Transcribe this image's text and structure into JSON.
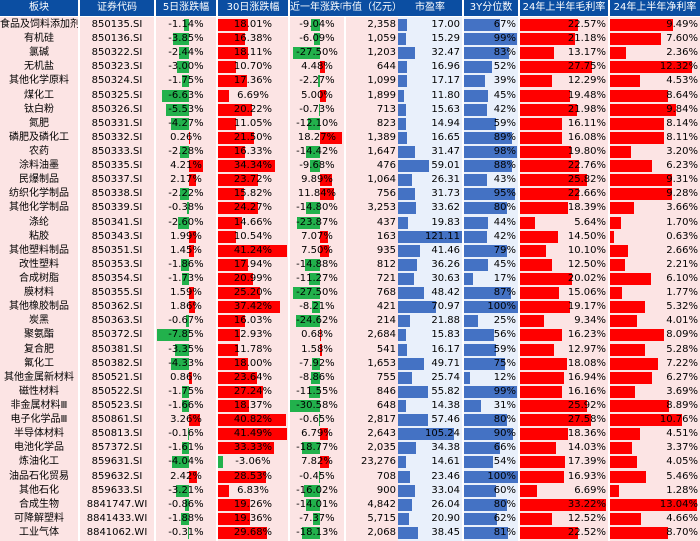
{
  "headers": [
    "板块",
    "证券代码",
    "5日涨跌幅",
    "30日涨跌幅",
    "近一年涨跌幅",
    "市值（亿元）",
    "市盈率",
    "3Y分位数",
    "24年上半年毛利率",
    "24年上半年净利率"
  ],
  "colors": {
    "header": "#0b4ea2",
    "pink": "#fce4e4",
    "blue_bg": "#e9f0fb",
    "red": "#ff0000",
    "green": "#22b14c",
    "blue_bar": "#4472c4"
  },
  "rows": [
    {
      "name": "食品及饲料添加剂",
      "code": "850135.SI",
      "d5": "-1.14%",
      "d30": "18.01%",
      "y1": "-9.04%",
      "mcap": "2,358",
      "pe": "17.00",
      "pct": "67%",
      "gm": "22.57%",
      "nm": "9.49%"
    },
    {
      "name": "有机硅",
      "code": "850136.SI",
      "d5": "-3.85%",
      "d30": "16.38%",
      "y1": "-6.09%",
      "mcap": "1,059",
      "pe": "15.29",
      "pct": "99%",
      "gm": "21.18%",
      "nm": "7.60%"
    },
    {
      "name": "氯碱",
      "code": "850322.SI",
      "d5": "-2.44%",
      "d30": "18.11%",
      "y1": "-27.50%",
      "mcap": "1,203",
      "pe": "32.47",
      "pct": "83%",
      "gm": "13.17%",
      "nm": "2.36%"
    },
    {
      "name": "无机盐",
      "code": "850323.SI",
      "d5": "-3.00%",
      "d30": "10.70%",
      "y1": "4.48%",
      "mcap": "644",
      "pe": "16.96",
      "pct": "52%",
      "gm": "27.75%",
      "nm": "12.32%"
    },
    {
      "name": "其他化学原料",
      "code": "850324.SI",
      "d5": "-1.75%",
      "d30": "17.36%",
      "y1": "-2.27%",
      "mcap": "1,099",
      "pe": "17.17",
      "pct": "39%",
      "gm": "12.29%",
      "nm": "4.53%"
    },
    {
      "name": "煤化工",
      "code": "850325.SI",
      "d5": "-6.63%",
      "d30": "6.69%",
      "y1": "5.00%",
      "mcap": "1,899",
      "pe": "11.80",
      "pct": "45%",
      "gm": "19.48%",
      "nm": "8.64%"
    },
    {
      "name": "钛白粉",
      "code": "850326.SI",
      "d5": "-5.53%",
      "d30": "20.22%",
      "y1": "-0.73%",
      "mcap": "713",
      "pe": "15.63",
      "pct": "42%",
      "gm": "21.98%",
      "nm": "9.84%"
    },
    {
      "name": "氮肥",
      "code": "850331.SI",
      "d5": "-4.27%",
      "d30": "11.05%",
      "y1": "-12.10%",
      "mcap": "823",
      "pe": "14.94",
      "pct": "59%",
      "gm": "16.11%",
      "nm": "8.14%"
    },
    {
      "name": "磷肥及磷化工",
      "code": "850332.SI",
      "d5": "0.26%",
      "d30": "21.50%",
      "y1": "18.27%",
      "mcap": "1,389",
      "pe": "16.65",
      "pct": "89%",
      "gm": "16.08%",
      "nm": "8.11%"
    },
    {
      "name": "农药",
      "code": "850333.SI",
      "d5": "-2.28%",
      "d30": "16.33%",
      "y1": "-14.42%",
      "mcap": "1,647",
      "pe": "31.47",
      "pct": "98%",
      "gm": "19.80%",
      "nm": "3.20%"
    },
    {
      "name": "涂料油墨",
      "code": "850335.SI",
      "d5": "4.21%",
      "d30": "34.34%",
      "y1": "-9.68%",
      "mcap": "476",
      "pe": "59.01",
      "pct": "88%",
      "gm": "22.76%",
      "nm": "6.23%"
    },
    {
      "name": "民爆制品",
      "code": "850337.SI",
      "d5": "2.17%",
      "d30": "23.72%",
      "y1": "9.89%",
      "mcap": "1,064",
      "pe": "26.31",
      "pct": "43%",
      "gm": "25.82%",
      "nm": "9.31%"
    },
    {
      "name": "纺织化学制品",
      "code": "850338.SI",
      "d5": "-2.22%",
      "d30": "15.82%",
      "y1": "11.84%",
      "mcap": "756",
      "pe": "31.73",
      "pct": "95%",
      "gm": "22.66%",
      "nm": "9.28%"
    },
    {
      "name": "其他化学制品",
      "code": "850339.SI",
      "d5": "-0.38%",
      "d30": "24.27%",
      "y1": "-14.80%",
      "mcap": "3,253",
      "pe": "33.62",
      "pct": "80%",
      "gm": "18.39%",
      "nm": "3.66%"
    },
    {
      "name": "涤纶",
      "code": "850341.SI",
      "d5": "-2.60%",
      "d30": "14.66%",
      "y1": "-23.87%",
      "mcap": "437",
      "pe": "19.83",
      "pct": "44%",
      "gm": "5.64%",
      "nm": "1.70%"
    },
    {
      "name": "粘胶",
      "code": "850343.SI",
      "d5": "1.99%",
      "d30": "10.54%",
      "y1": "7.07%",
      "mcap": "163",
      "pe": "121.11",
      "pct": "42%",
      "gm": "14.50%",
      "nm": "0.63%"
    },
    {
      "name": "其他塑料制品",
      "code": "850351.SI",
      "d5": "1.45%",
      "d30": "41.24%",
      "y1": "7.50%",
      "mcap": "935",
      "pe": "41.46",
      "pct": "79%",
      "gm": "10.10%",
      "nm": "2.66%"
    },
    {
      "name": "改性塑料",
      "code": "850353.SI",
      "d5": "-1.86%",
      "d30": "17.94%",
      "y1": "-14.88%",
      "mcap": "812",
      "pe": "36.26",
      "pct": "45%",
      "gm": "12.50%",
      "nm": "2.21%"
    },
    {
      "name": "合成树脂",
      "code": "850354.SI",
      "d5": "-1.73%",
      "d30": "20.99%",
      "y1": "-11.27%",
      "mcap": "721",
      "pe": "30.63",
      "pct": "17%",
      "gm": "20.02%",
      "nm": "6.10%"
    },
    {
      "name": "膜材料",
      "code": "850355.SI",
      "d5": "1.59%",
      "d30": "25.20%",
      "y1": "-27.50%",
      "mcap": "768",
      "pe": "48.42",
      "pct": "87%",
      "gm": "15.06%",
      "nm": "1.77%"
    },
    {
      "name": "其他橡胶制品",
      "code": "850362.SI",
      "d5": "1.86%",
      "d30": "37.42%",
      "y1": "-8.21%",
      "mcap": "421",
      "pe": "70.97",
      "pct": "100%",
      "gm": "19.17%",
      "nm": "5.32%"
    },
    {
      "name": "炭黑",
      "code": "850363.SI",
      "d5": "-0.67%",
      "d30": "16.03%",
      "y1": "-24.62%",
      "mcap": "214",
      "pe": "21.88",
      "pct": "25%",
      "gm": "9.34%",
      "nm": "4.01%"
    },
    {
      "name": "聚氨酯",
      "code": "850372.SI",
      "d5": "-7.85%",
      "d30": "12.93%",
      "y1": "0.68%",
      "mcap": "2,684",
      "pe": "15.83",
      "pct": "56%",
      "gm": "16.23%",
      "nm": "8.09%"
    },
    {
      "name": "复合肥",
      "code": "850381.SI",
      "d5": "-3.35%",
      "d30": "11.78%",
      "y1": "1.58%",
      "mcap": "541",
      "pe": "16.17",
      "pct": "59%",
      "gm": "12.97%",
      "nm": "5.28%"
    },
    {
      "name": "氟化工",
      "code": "850382.SI",
      "d5": "-4.33%",
      "d30": "18.00%",
      "y1": "-7.92%",
      "mcap": "1,653",
      "pe": "49.71",
      "pct": "75%",
      "gm": "18.08%",
      "nm": "7.22%"
    },
    {
      "name": "其他金属新材料",
      "code": "850521.SI",
      "d5": "0.86%",
      "d30": "23.64%",
      "y1": "-8.86%",
      "mcap": "755",
      "pe": "25.74",
      "pct": "12%",
      "gm": "16.94%",
      "nm": "6.27%"
    },
    {
      "name": "磁性材料",
      "code": "850522.SI",
      "d5": "-1.75%",
      "d30": "27.24%",
      "y1": "-11.55%",
      "mcap": "846",
      "pe": "55.82",
      "pct": "99%",
      "gm": "16.16%",
      "nm": "3.69%"
    },
    {
      "name": "非金属材料Ⅲ",
      "code": "850523.SI",
      "d5": "-1.66%",
      "d30": "18.37%",
      "y1": "-30.58%",
      "mcap": "648",
      "pe": "14.38",
      "pct": "31%",
      "gm": "25.92%",
      "nm": "8.89%"
    },
    {
      "name": "电子化学品Ⅲ",
      "code": "850861.SI",
      "d5": "3.26%",
      "d30": "40.82%",
      "y1": "-0.65%",
      "mcap": "2,817",
      "pe": "57.46",
      "pct": "80%",
      "gm": "27.58%",
      "nm": "10.76%"
    },
    {
      "name": "半导体材料",
      "code": "850813.SI",
      "d5": "-0.16%",
      "d30": "41.49%",
      "y1": "6.79%",
      "mcap": "2,643",
      "pe": "105.24",
      "pct": "90%",
      "gm": "18.36%",
      "nm": "4.51%"
    },
    {
      "name": "电池化学品",
      "code": "857372.SI",
      "d5": "-1.61%",
      "d30": "33.33%",
      "y1": "-18.77%",
      "mcap": "2,035",
      "pe": "34.38",
      "pct": "66%",
      "gm": "14.03%",
      "nm": "3.37%"
    },
    {
      "name": "炼油化工",
      "code": "859631.SI",
      "d5": "-4.04%",
      "d30": "-3.06%",
      "y1": "7.82%",
      "mcap": "23,276",
      "pe": "14.61",
      "pct": "54%",
      "gm": "17.39%",
      "nm": "4.05%"
    },
    {
      "name": "油品石化贸易",
      "code": "859632.SI",
      "d5": "2.42%",
      "d30": "28.53%",
      "y1": "-0.45%",
      "mcap": "708",
      "pe": "23.46",
      "pct": "100%",
      "gm": "16.93%",
      "nm": "5.46%"
    },
    {
      "name": "其他石化",
      "code": "859633.SI",
      "d5": "-3.21%",
      "d30": "6.83%",
      "y1": "-16.02%",
      "mcap": "900",
      "pe": "33.04",
      "pct": "60%",
      "gm": "6.69%",
      "nm": "1.28%"
    },
    {
      "name": "合成生物",
      "code": "8841747.WI",
      "d5": "-0.86%",
      "d30": "19.26%",
      "y1": "-14.01%",
      "mcap": "4,842",
      "pe": "26.04",
      "pct": "80%",
      "gm": "33.22%",
      "nm": "13.04%"
    },
    {
      "name": "可降解塑料",
      "code": "8841433.WI",
      "d5": "-1.88%",
      "d30": "19.36%",
      "y1": "-7.37%",
      "mcap": "5,715",
      "pe": "20.90",
      "pct": "62%",
      "gm": "12.52%",
      "nm": "4.66%"
    },
    {
      "name": "工业气体",
      "code": "8841062.WI",
      "d5": "-0.31%",
      "d30": "29.68%",
      "y1": "-18.13%",
      "mcap": "2,068",
      "pe": "38.45",
      "pct": "81%",
      "gm": "22.52%",
      "nm": "8.70%"
    }
  ]
}
